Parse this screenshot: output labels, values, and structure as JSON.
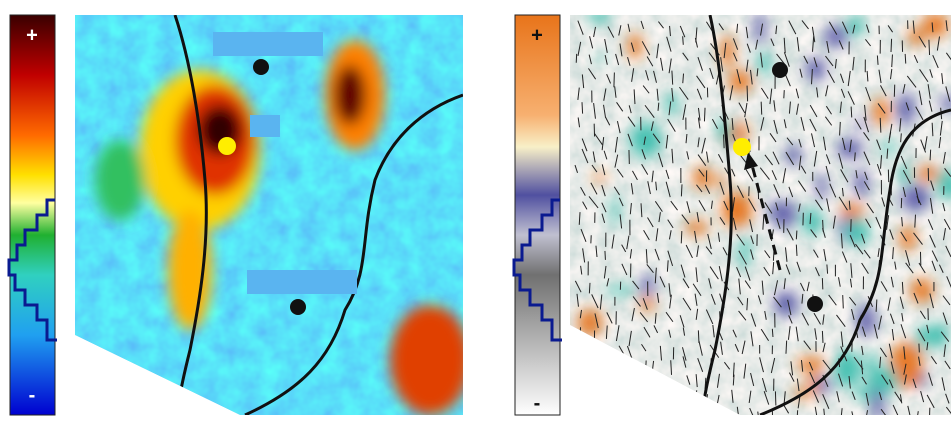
{
  "panels": [
    {
      "colorbar": {
        "top": "+",
        "bottom": "-"
      }
    },
    {
      "colorbar": {
        "top": "+",
        "bottom": "-"
      }
    }
  ]
}
